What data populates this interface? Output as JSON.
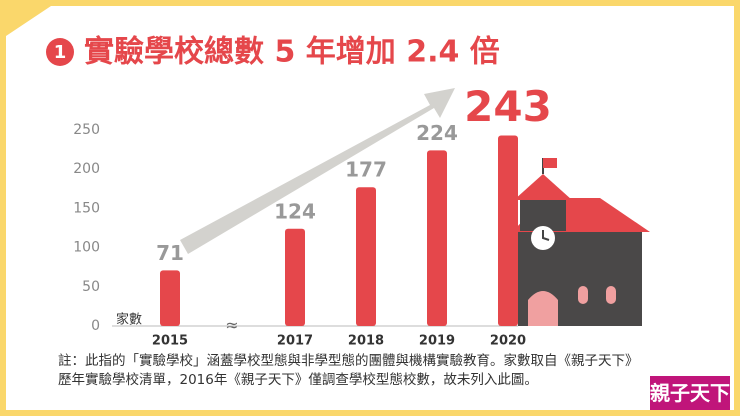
{
  "chart_data": {
    "type": "bar",
    "title_number": "1",
    "title": "實驗學校總數 5 年增加 2.4 倍",
    "y_unit_label": "家數",
    "categories": [
      "2015",
      "2017",
      "2018",
      "2019",
      "2020"
    ],
    "values": [
      71,
      124,
      177,
      224,
      243
    ],
    "color": "#e5474b",
    "ylim": [
      0,
      250
    ],
    "yticks": [
      0,
      50,
      100,
      150,
      200,
      250
    ],
    "grid": false
  },
  "note": "註：此指的「實驗學校」涵蓋學校型態與非學型態的團體與機構實驗教育。家數取自《親子天下》歷年實驗學校清單，2016年《親子天下》僅調查學校型態校數，故未列入此圖。",
  "logo": "親子天下"
}
